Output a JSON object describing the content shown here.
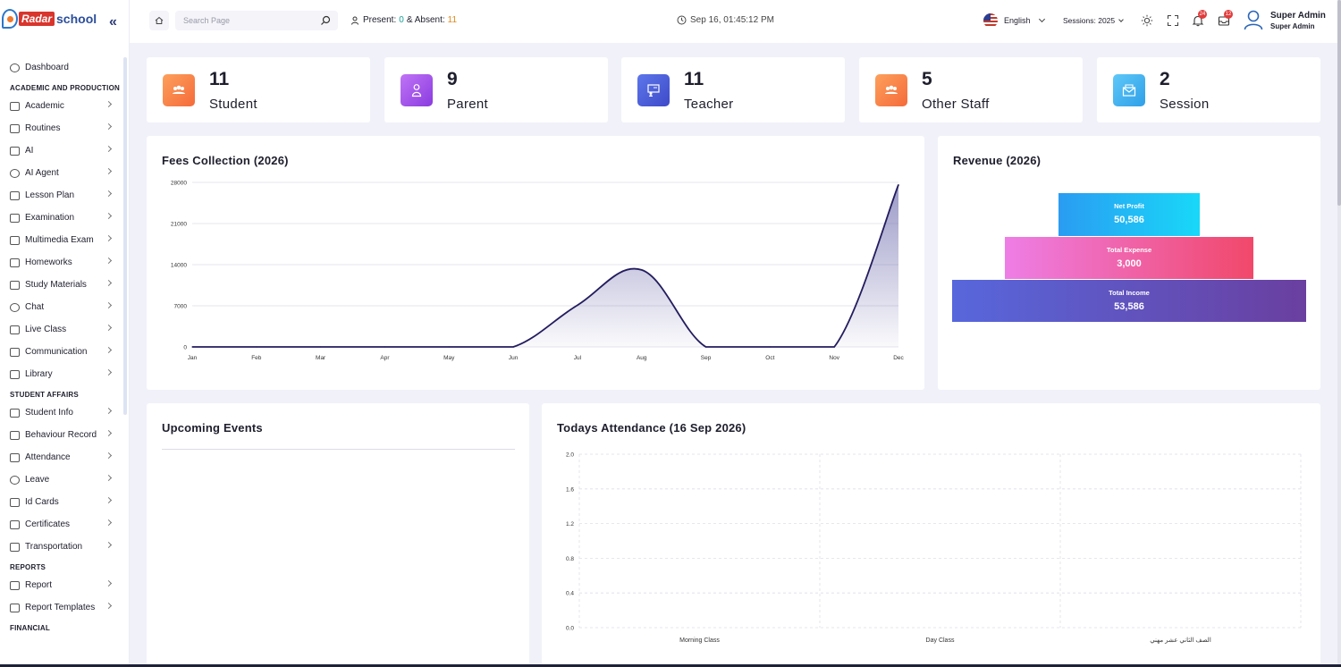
{
  "brand": {
    "part1": "Radar",
    "part2": "school"
  },
  "sidebar": {
    "top": [
      {
        "label": "Dashboard"
      }
    ],
    "sections": [
      {
        "title": "ACADEMIC AND PRODUCTION",
        "items": [
          {
            "label": "Academic"
          },
          {
            "label": "Routines"
          },
          {
            "label": "AI"
          },
          {
            "label": "AI Agent"
          },
          {
            "label": "Lesson Plan"
          },
          {
            "label": "Examination"
          },
          {
            "label": "Multimedia Exam"
          },
          {
            "label": "Homeworks"
          },
          {
            "label": "Study Materials"
          },
          {
            "label": "Chat"
          },
          {
            "label": "Live Class"
          },
          {
            "label": "Communication"
          },
          {
            "label": "Library"
          }
        ]
      },
      {
        "title": "STUDENT AFFAIRS",
        "items": [
          {
            "label": "Student Info"
          },
          {
            "label": "Behaviour Record"
          },
          {
            "label": "Attendance"
          },
          {
            "label": "Leave"
          },
          {
            "label": "Id Cards"
          },
          {
            "label": "Certificates"
          },
          {
            "label": "Transportation"
          }
        ]
      },
      {
        "title": "REPORTS",
        "items": [
          {
            "label": "Report"
          },
          {
            "label": "Report Templates"
          }
        ]
      },
      {
        "title": "FINANCIAL",
        "items": []
      }
    ]
  },
  "header": {
    "search_placeholder": "Search Page",
    "present_label": "Present:",
    "present_value": "0",
    "absent_label": "& Absent:",
    "absent_value": "11",
    "datetime": "Sep 16, 01:45:12 PM",
    "language": "English",
    "session": "Sessions: 2025",
    "notification_count": "24",
    "message_count": "12",
    "user_name": "Super Admin",
    "user_role": "Super Admin"
  },
  "stats": [
    {
      "value": "11",
      "label": "Student",
      "color": "#f7844a"
    },
    {
      "value": "9",
      "label": "Parent",
      "color": "#9b4de8"
    },
    {
      "value": "11",
      "label": "Teacher",
      "color": "#4e5fdc"
    },
    {
      "value": "5",
      "label": "Other Staff",
      "color": "#f7844a"
    },
    {
      "value": "2",
      "label": "Session",
      "color": "#3bb0f0"
    }
  ],
  "fees": {
    "title": "Fees Collection (2026)",
    "chart_data": {
      "type": "area",
      "categories": [
        "Jan",
        "Feb",
        "Mar",
        "Apr",
        "May",
        "Jun",
        "Jul",
        "Aug",
        "Sep",
        "Oct",
        "Nov",
        "Dec"
      ],
      "values": [
        0,
        0,
        0,
        0,
        0,
        0,
        7100,
        13100,
        0,
        0,
        0,
        27600
      ],
      "yticks": [
        0,
        7000,
        14000,
        21000,
        28000
      ],
      "ylim": [
        0,
        28000
      ]
    }
  },
  "revenue": {
    "title": "Revenue (2026)",
    "items": [
      {
        "label": "Net Profit",
        "value": "50,586"
      },
      {
        "label": "Total Expense",
        "value": "3,000"
      },
      {
        "label": "Total Income",
        "value": "53,586"
      }
    ]
  },
  "events": {
    "title": "Upcoming Events"
  },
  "attendance": {
    "title": "Todays Attendance (16 Sep 2026)",
    "chart_data": {
      "type": "bar",
      "categories": [
        "Morning Class",
        "Day Class",
        "الصف الثاني عشر مهني"
      ],
      "values": [
        0,
        0,
        0
      ],
      "yticks": [
        "0.0",
        "0.4",
        "0.8",
        "1.2",
        "1.6",
        "2.0"
      ],
      "ylim": [
        0,
        2
      ]
    }
  }
}
